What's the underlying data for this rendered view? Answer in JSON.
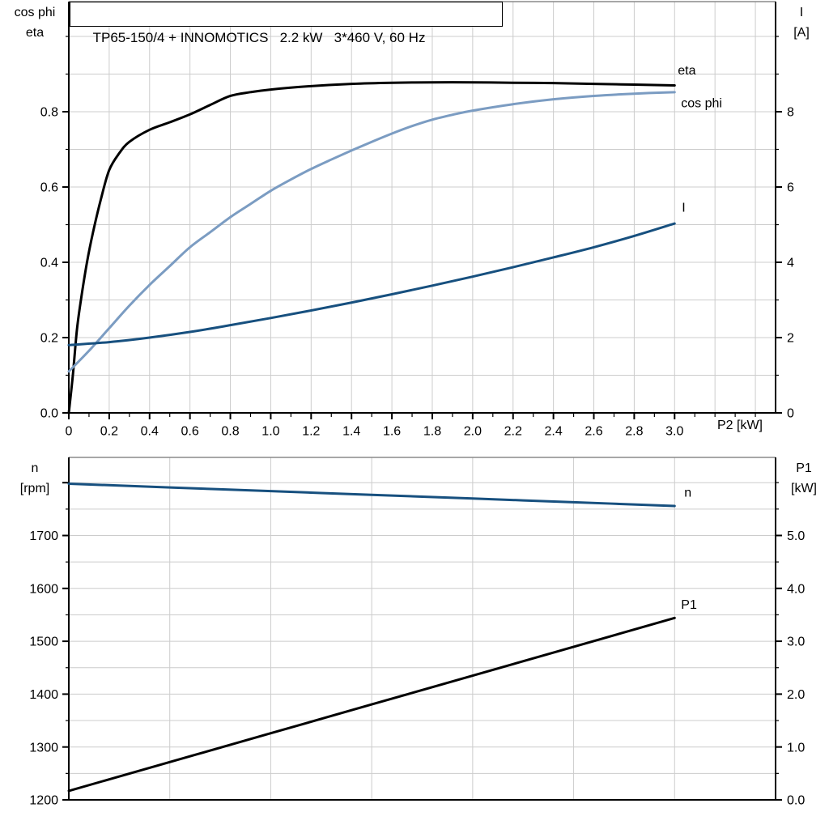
{
  "title_box": {
    "text": "TP65-150/4 + INNOMOTICS   2.2 kW   3*460 V, 60 Hz"
  },
  "colors": {
    "grid": "#cccccc",
    "frame_top": "#8a8a8a",
    "axis": "#000000",
    "background": "#ffffff"
  },
  "chart_data": [
    {
      "type": "line",
      "title": "TP65-150/4 + INNOMOTICS   2.2 kW   3*460 V, 60 Hz",
      "x_axis": {
        "label": "P2 [kW]",
        "min": 0,
        "max": 3.5,
        "minor_step": 0.1,
        "grid_step": 0.2,
        "major_ticks": [
          {
            "v": 0,
            "t": "0"
          },
          {
            "v": 0.2,
            "t": "0.2"
          },
          {
            "v": 0.4,
            "t": "0.4"
          },
          {
            "v": 0.6,
            "t": "0.6"
          },
          {
            "v": 0.8,
            "t": "0.8"
          },
          {
            "v": 1.0,
            "t": "1.0"
          },
          {
            "v": 1.2,
            "t": "1.2"
          },
          {
            "v": 1.4,
            "t": "1.4"
          },
          {
            "v": 1.6,
            "t": "1.6"
          },
          {
            "v": 1.8,
            "t": "1.8"
          },
          {
            "v": 2.0,
            "t": "2.0"
          },
          {
            "v": 2.2,
            "t": "2.2"
          },
          {
            "v": 2.4,
            "t": "2.4"
          },
          {
            "v": 2.6,
            "t": "2.6"
          },
          {
            "v": 2.8,
            "t": "2.8"
          },
          {
            "v": 3.0,
            "t": "3.0"
          }
        ]
      },
      "left_axis": {
        "title_lines": [
          "cos phi",
          "eta"
        ],
        "min": 0,
        "max": 1.0925,
        "minor_step": 0.1,
        "grid_step": 0.1,
        "major_ticks": [
          {
            "v": 0.0,
            "t": "0.0"
          },
          {
            "v": 0.2,
            "t": "0.2"
          },
          {
            "v": 0.4,
            "t": "0.4"
          },
          {
            "v": 0.6,
            "t": "0.6"
          },
          {
            "v": 0.8,
            "t": "0.8"
          }
        ]
      },
      "right_axis": {
        "title_lines": [
          "I",
          "[A]"
        ],
        "min": 0,
        "max": 10.925,
        "minor_step": 1,
        "major_ticks": [
          {
            "v": 0,
            "t": "0"
          },
          {
            "v": 2,
            "t": "2"
          },
          {
            "v": 4,
            "t": "4"
          },
          {
            "v": 6,
            "t": "6"
          },
          {
            "v": 8,
            "t": "8"
          }
        ]
      },
      "series": [
        {
          "name": "eta",
          "label": "eta",
          "axis": "left",
          "color": "#000000",
          "x": [
            0,
            0.02,
            0.04,
            0.06,
            0.09,
            0.12,
            0.16,
            0.2,
            0.25,
            0.3,
            0.4,
            0.5,
            0.6,
            0.7,
            0.8,
            0.9,
            1.0,
            1.2,
            1.4,
            1.6,
            1.8,
            2.0,
            2.2,
            2.4,
            2.6,
            2.8,
            3.0
          ],
          "y": [
            0,
            0.1,
            0.22,
            0.3,
            0.4,
            0.48,
            0.57,
            0.645,
            0.69,
            0.72,
            0.752,
            0.772,
            0.793,
            0.818,
            0.842,
            0.852,
            0.859,
            0.868,
            0.874,
            0.877,
            0.878,
            0.878,
            0.877,
            0.876,
            0.874,
            0.872,
            0.87
          ]
        },
        {
          "name": "cos phi",
          "label": "cos phi",
          "axis": "left",
          "color": "#7b9cc2",
          "x": [
            0,
            0.1,
            0.2,
            0.3,
            0.4,
            0.5,
            0.6,
            0.7,
            0.8,
            0.9,
            1.0,
            1.1,
            1.2,
            1.3,
            1.4,
            1.5,
            1.6,
            1.7,
            1.8,
            1.9,
            2.0,
            2.2,
            2.4,
            2.6,
            2.8,
            3.0
          ],
          "y": [
            0.11,
            0.165,
            0.225,
            0.285,
            0.34,
            0.39,
            0.44,
            0.48,
            0.52,
            0.555,
            0.59,
            0.62,
            0.648,
            0.673,
            0.697,
            0.72,
            0.742,
            0.762,
            0.779,
            0.792,
            0.803,
            0.82,
            0.833,
            0.842,
            0.848,
            0.852
          ]
        },
        {
          "name": "I",
          "label": "I",
          "axis": "right",
          "color": "#17507f",
          "x": [
            0,
            0.2,
            0.4,
            0.6,
            0.8,
            1.0,
            1.2,
            1.4,
            1.6,
            1.8,
            2.0,
            2.2,
            2.4,
            2.6,
            2.8,
            3.0
          ],
          "y": [
            1.8,
            1.88,
            2.0,
            2.15,
            2.33,
            2.52,
            2.72,
            2.93,
            3.15,
            3.38,
            3.62,
            3.87,
            4.13,
            4.4,
            4.7,
            5.03
          ]
        }
      ]
    },
    {
      "type": "line",
      "title": "",
      "x_axis": {
        "label": "",
        "min": 0,
        "max": 3.5,
        "minor_step": 0,
        "grid_step": 0.5,
        "major_ticks": []
      },
      "left_axis": {
        "title_lines": [
          "n",
          "[rpm]"
        ],
        "min": 1200,
        "max": 1847.8,
        "minor_step": 50,
        "grid_step": 50,
        "major_ticks": [
          {
            "v": 1800,
            "t": ""
          },
          {
            "v": 1700,
            "t": "1700"
          },
          {
            "v": 1600,
            "t": "1600"
          },
          {
            "v": 1500,
            "t": "1500"
          },
          {
            "v": 1400,
            "t": "1400"
          },
          {
            "v": 1300,
            "t": "1300"
          },
          {
            "v": 1200,
            "t": "1200"
          }
        ]
      },
      "right_axis": {
        "title_lines": [
          "P1",
          "[kW]"
        ],
        "min": 0,
        "max": 6.477,
        "minor_step": 0.5,
        "major_ticks": [
          {
            "v": 5.0,
            "t": "5.0"
          },
          {
            "v": 4.0,
            "t": "4.0"
          },
          {
            "v": 3.0,
            "t": "3.0"
          },
          {
            "v": 2.0,
            "t": "2.0"
          },
          {
            "v": 1.0,
            "t": "1.0"
          },
          {
            "v": 0.0,
            "t": "0.0"
          }
        ]
      },
      "series": [
        {
          "name": "n",
          "label": "n",
          "axis": "left",
          "color": "#17507f",
          "x": [
            0,
            0.5,
            1.0,
            1.5,
            2.0,
            2.5,
            3.0
          ],
          "y": [
            1798,
            1791,
            1784,
            1777,
            1770,
            1763,
            1756
          ]
        },
        {
          "name": "P1",
          "label": "P1",
          "axis": "right",
          "color": "#000000",
          "x": [
            0,
            1.0,
            2.0,
            3.0
          ],
          "y": [
            0.17,
            1.26,
            2.35,
            3.44
          ]
        }
      ]
    }
  ]
}
